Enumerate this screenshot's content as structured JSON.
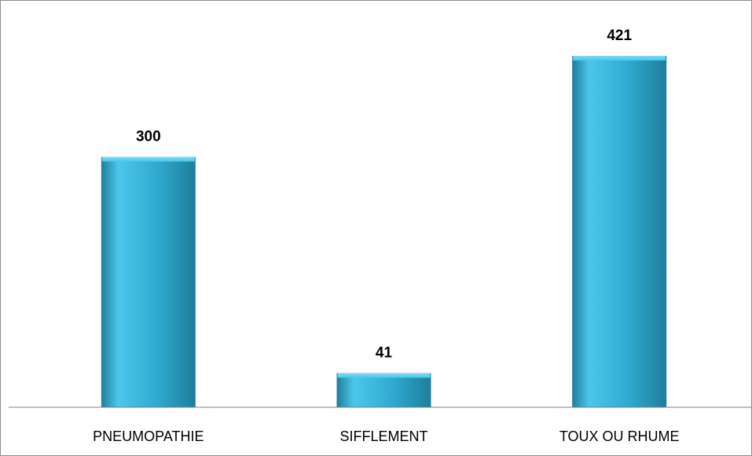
{
  "chart_data": {
    "type": "bar",
    "categories": [
      "PNEUMOPATHIE",
      "SIFFLEMENT",
      "TOUX OU RHUME"
    ],
    "values": [
      300,
      41,
      421
    ],
    "data_labels": [
      "300",
      "41",
      "421"
    ],
    "title": "",
    "xlabel": "",
    "ylabel": "",
    "ylim": [
      0,
      450
    ],
    "grid": false,
    "legend": "none",
    "y_axis_visible": false,
    "colors": {
      "bar_light": "#4cc6ea",
      "bar_mid": "#2fa9cf",
      "bar_dark": "#1f7d9b",
      "bar_top": "#7fd9f3",
      "axis": "#7f7f7f"
    }
  }
}
